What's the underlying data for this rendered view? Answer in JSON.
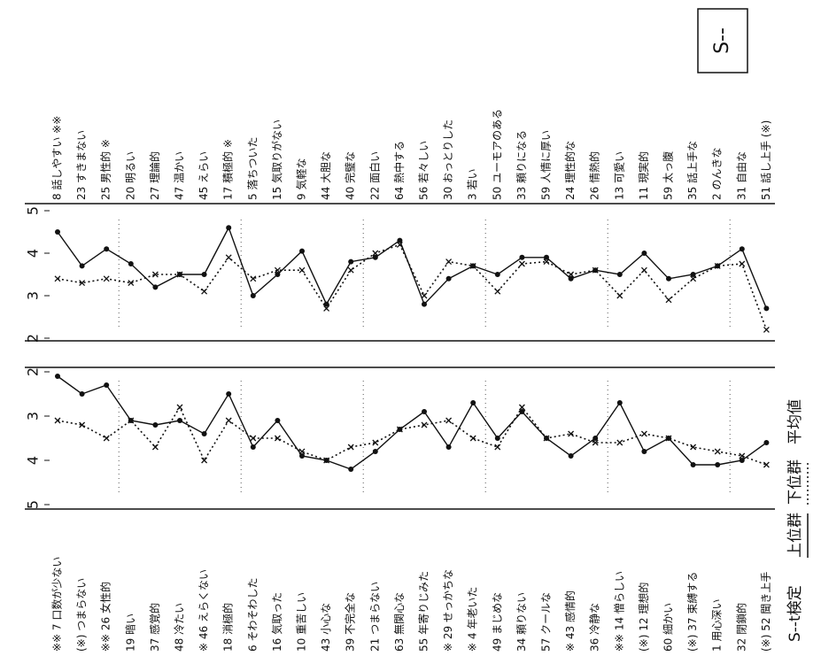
{
  "chart_data": [
    {
      "type": "line",
      "title": "S--",
      "annotation": "S--t検定",
      "legend_title": "平均値",
      "categories": [
        "8 話しやすい ※※",
        "23 すきまない",
        "25 男性的 ※",
        "20 明るい",
        "27 理論的",
        "47 温かい",
        "45 えらい",
        "17 積極的 ※",
        "5 落ちついた",
        "15 気取りがない",
        "9 気軽な",
        "44 大胆な",
        "40 完璧な",
        "22 面白い",
        "64 熱中する",
        "56 若々しい",
        "30 おっとりした",
        "3 若い",
        "50 ユーモアのある",
        "33 頼りになる",
        "59 人情に厚い",
        "24 理性的な",
        "26 情熱的",
        "13 可愛い",
        "11 現実的",
        "59 太っ腹",
        "35 話上手な",
        "2 のんきな",
        "31 自由な",
        "51 話し上手 (※)"
      ],
      "ylim": [
        5,
        2
      ],
      "yticks": [
        5,
        4,
        3,
        2
      ],
      "series": [
        {
          "name": "上位群",
          "color": "#111111",
          "style": "solid",
          "values": [
            4.5,
            3.7,
            4.1,
            3.75,
            3.2,
            3.5,
            3.5,
            4.6,
            3.0,
            3.5,
            4.05,
            2.8,
            3.8,
            3.9,
            4.3,
            2.8,
            3.4,
            3.7,
            3.5,
            3.9,
            3.9,
            3.4,
            3.6,
            3.5,
            4.0,
            3.4,
            3.5,
            3.7,
            4.1,
            2.7
          ]
        },
        {
          "name": "下位群",
          "color": "#111111",
          "style": "dotted",
          "values": [
            3.4,
            3.3,
            3.4,
            3.3,
            3.5,
            3.5,
            3.1,
            3.9,
            3.4,
            3.6,
            3.6,
            2.7,
            3.6,
            4.0,
            4.2,
            3.0,
            3.8,
            3.7,
            3.1,
            3.75,
            3.8,
            3.5,
            3.6,
            3.0,
            3.6,
            2.9,
            3.4,
            3.7,
            3.75,
            2.2
          ]
        }
      ]
    },
    {
      "type": "line",
      "categories": [
        "※※ 7 口数が少ない",
        "(※) つまらない",
        "※※ 26 女性的",
        "19 暗い",
        "37 感覚的",
        "48 冷たい",
        "※ 46 えらくない",
        "18 消極的",
        "6 そわそわした",
        "16 気取った",
        "10 重苦しい",
        "43 小心な",
        "39 不完全な",
        "21 つまらない",
        "63 無関心な",
        "55 年寄りじみた",
        "※ 29 せっかちな",
        "※ 4 年老いた",
        "49 まじめな",
        "34 頼りない",
        "57 クールな",
        "※ 43 感情的",
        "36 冷静な",
        "※※ 14 憎らしい",
        "(※) 12 理想的",
        "60 細かい",
        "(※) 37 束縛する",
        "1 用心深い",
        "32 閉鎖的",
        "(※) 52 聞き上手"
      ],
      "ylim": [
        2,
        5
      ],
      "yticks": [
        2,
        3,
        4,
        5
      ],
      "series": [
        {
          "name": "上位群",
          "color": "#111111",
          "style": "solid",
          "values": [
            2.1,
            2.5,
            2.3,
            3.1,
            3.2,
            3.1,
            3.4,
            2.5,
            3.7,
            3.1,
            3.9,
            4.0,
            4.2,
            3.8,
            3.3,
            2.9,
            3.7,
            2.7,
            3.5,
            2.9,
            3.5,
            3.9,
            3.5,
            2.7,
            3.8,
            3.5,
            4.1,
            4.1,
            4.0,
            3.6
          ]
        },
        {
          "name": "下位群",
          "color": "#111111",
          "style": "dotted",
          "values": [
            3.1,
            3.2,
            3.5,
            3.1,
            3.7,
            2.8,
            4.0,
            3.1,
            3.5,
            3.5,
            3.8,
            4.0,
            3.7,
            3.6,
            3.3,
            3.2,
            3.1,
            3.5,
            3.7,
            2.8,
            3.5,
            3.4,
            3.6,
            3.6,
            3.4,
            3.5,
            3.7,
            3.8,
            3.9,
            4.1
          ]
        }
      ]
    }
  ]
}
